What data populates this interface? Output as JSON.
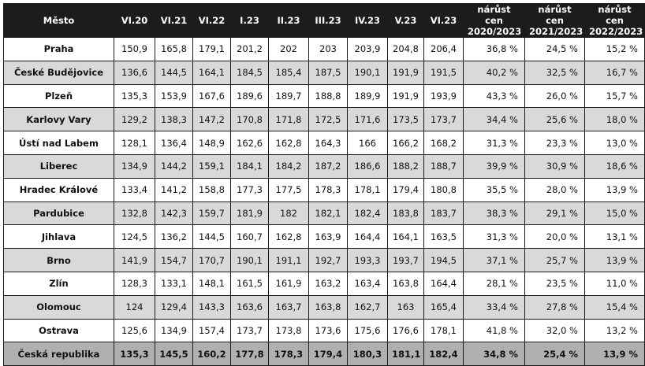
{
  "table": {
    "headers": [
      "Město",
      "VI.20",
      "VI.21",
      "VI.22",
      "I.23",
      "II.23",
      "III.23",
      "IV.23",
      "V.23",
      "VI.23",
      "nárůst cen 2020/2023",
      "nárůst cen 2021/2023",
      "nárůst cen 2022/2023"
    ],
    "rows": [
      [
        "Praha",
        "150,9",
        "165,8",
        "179,1",
        "201,2",
        "202",
        "203",
        "203,9",
        "204,8",
        "206,4",
        "36,8 %",
        "24,5 %",
        "15,2 %"
      ],
      [
        "České Budějovice",
        "136,6",
        "144,5",
        "164,1",
        "184,5",
        "185,4",
        "187,5",
        "190,1",
        "191,9",
        "191,5",
        "40,2 %",
        "32,5 %",
        "16,7 %"
      ],
      [
        "Plzeň",
        "135,3",
        "153,9",
        "167,6",
        "189,6",
        "189,7",
        "188,8",
        "189,9",
        "191,9",
        "193,9",
        "43,3 %",
        "26,0 %",
        "15,7 %"
      ],
      [
        "Karlovy Vary",
        "129,2",
        "138,3",
        "147,2",
        "170,8",
        "171,8",
        "172,5",
        "171,6",
        "173,5",
        "173,7",
        "34,4 %",
        "25,6 %",
        "18,0 %"
      ],
      [
        "Ústí nad Labem",
        "128,1",
        "136,4",
        "148,9",
        "162,6",
        "162,8",
        "164,3",
        "166",
        "166,2",
        "168,2",
        "31,3 %",
        "23,3 %",
        "13,0 %"
      ],
      [
        "Liberec",
        "134,9",
        "144,2",
        "159,1",
        "184,1",
        "184,2",
        "187,2",
        "186,6",
        "188,2",
        "188,7",
        "39,9 %",
        "30,9 %",
        "18,6 %"
      ],
      [
        "Hradec Králové",
        "133,4",
        "141,2",
        "158,8",
        "177,3",
        "177,5",
        "178,3",
        "178,1",
        "179,4",
        "180,8",
        "35,5 %",
        "28,0 %",
        "13,9 %"
      ],
      [
        "Pardubice",
        "132,8",
        "142,3",
        "159,7",
        "181,9",
        "182",
        "182,1",
        "182,4",
        "183,8",
        "183,7",
        "38,3 %",
        "29,1 %",
        "15,0 %"
      ],
      [
        "Jihlava",
        "124,5",
        "136,2",
        "144,5",
        "160,7",
        "162,8",
        "163,9",
        "164,4",
        "164,1",
        "163,5",
        "31,3 %",
        "20,0 %",
        "13,1 %"
      ],
      [
        "Brno",
        "141,9",
        "154,7",
        "170,7",
        "190,1",
        "191,1",
        "192,7",
        "193,3",
        "193,7",
        "194,5",
        "37,1 %",
        "25,7 %",
        "13,9 %"
      ],
      [
        "Zlín",
        "128,3",
        "133,1",
        "148,1",
        "161,5",
        "161,9",
        "163,2",
        "163,4",
        "163,8",
        "164,4",
        "28,1 %",
        "23,5 %",
        "11,0 %"
      ],
      [
        "Olomouc",
        "124",
        "129,4",
        "143,3",
        "163,6",
        "163,7",
        "163,8",
        "162,7",
        "163",
        "165,4",
        "33,4 %",
        "27,8 %",
        "15,4 %"
      ],
      [
        "Ostrava",
        "125,6",
        "134,9",
        "157,4",
        "173,7",
        "173,8",
        "173,6",
        "175,6",
        "176,6",
        "178,1",
        "41,8 %",
        "32,0 %",
        "13,2 %"
      ],
      [
        "Česká republika",
        "135,3",
        "145,5",
        "160,2",
        "177,8",
        "178,3",
        "179,4",
        "180,3",
        "181,1",
        "182,4",
        "34,8 %",
        "25,4 %",
        "13,9 %"
      ]
    ]
  }
}
